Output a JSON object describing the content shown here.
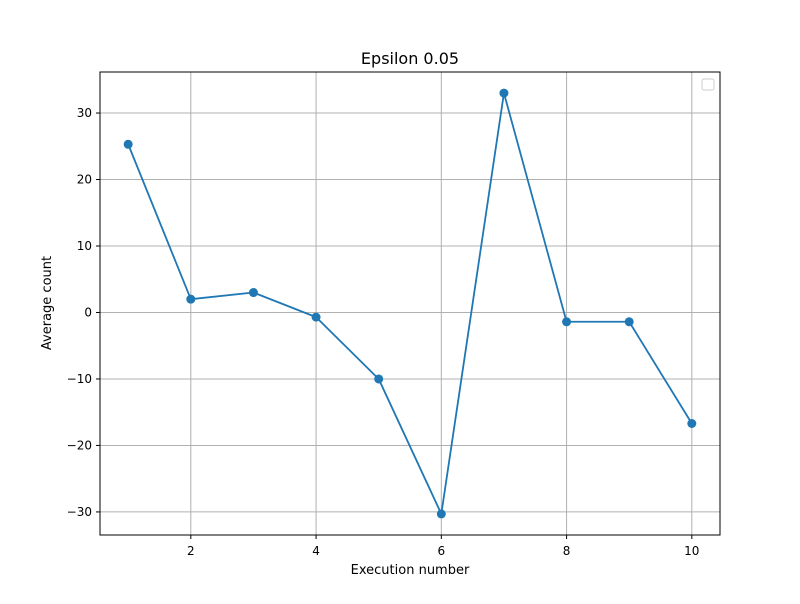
{
  "chart_data": {
    "type": "line",
    "title": "Epsilon 0.05",
    "xlabel": "Execution number",
    "ylabel": "Average count",
    "x": [
      1,
      2,
      3,
      4,
      5,
      6,
      7,
      8,
      9,
      10
    ],
    "series": [
      {
        "values": [
          25.3,
          2.0,
          3.0,
          -0.7,
          -10.0,
          -30.3,
          33.0,
          -1.4,
          -1.4,
          -16.7
        ]
      }
    ],
    "xlim": [
      0.55,
      10.45
    ],
    "ylim": [
      -33.47,
      36.17
    ],
    "xticks": [
      2,
      4,
      6,
      8,
      10
    ],
    "xtick_labels": [
      "2",
      "4",
      "6",
      "8",
      "10"
    ],
    "yticks": [
      -30,
      -20,
      -10,
      0,
      10,
      20,
      30
    ],
    "ytick_labels": [
      "−30",
      "−20",
      "−10",
      "0",
      "10",
      "20",
      "30"
    ],
    "grid": true,
    "marker": "circle",
    "legend": {
      "visible": true,
      "position": "top-right",
      "entries": []
    },
    "colors": {
      "line": "#1f77b4",
      "grid": "#b0b0b0",
      "axes": "#000000"
    }
  }
}
